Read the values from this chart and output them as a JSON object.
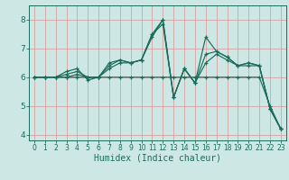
{
  "title": "",
  "xlabel": "Humidex (Indice chaleur)",
  "ylabel": "",
  "bg_color": "#cde8e4",
  "grid_color": "#b8d8d4",
  "line_color": "#1a6b5a",
  "xlim": [
    -0.5,
    23.5
  ],
  "ylim": [
    3.8,
    8.5
  ],
  "xticks": [
    0,
    1,
    2,
    3,
    4,
    5,
    6,
    7,
    8,
    9,
    10,
    11,
    12,
    13,
    14,
    15,
    16,
    17,
    18,
    19,
    20,
    21,
    22,
    23
  ],
  "yticks": [
    4,
    5,
    6,
    7,
    8
  ],
  "series": [
    {
      "x": [
        0,
        1,
        2,
        3,
        4,
        5,
        6,
        7,
        8,
        9,
        10,
        11,
        12,
        13,
        14,
        15,
        16,
        17,
        18,
        19,
        20,
        21,
        22,
        23
      ],
      "y": [
        6.0,
        6.0,
        6.0,
        6.1,
        6.2,
        6.0,
        6.0,
        6.3,
        6.5,
        6.5,
        6.6,
        7.5,
        7.85,
        5.3,
        6.3,
        5.8,
        6.5,
        6.8,
        6.6,
        6.4,
        6.4,
        6.4,
        4.9,
        4.2
      ]
    },
    {
      "x": [
        0,
        1,
        2,
        3,
        4,
        5,
        6,
        7,
        8,
        9,
        10,
        11,
        12,
        13,
        14,
        15,
        16,
        17,
        18,
        19,
        20,
        21,
        22,
        23
      ],
      "y": [
        6.0,
        6.0,
        6.0,
        6.0,
        6.1,
        6.0,
        6.0,
        6.4,
        6.6,
        6.5,
        6.6,
        7.4,
        8.0,
        5.3,
        6.3,
        5.8,
        7.4,
        6.9,
        6.7,
        6.4,
        6.5,
        6.4,
        4.9,
        4.2
      ]
    },
    {
      "x": [
        0,
        1,
        2,
        3,
        4,
        5,
        6,
        7,
        8,
        9,
        10,
        11,
        12,
        13,
        14,
        15,
        16,
        17,
        18,
        19,
        20,
        21,
        22,
        23
      ],
      "y": [
        6.0,
        6.0,
        6.0,
        6.2,
        6.3,
        5.9,
        6.0,
        6.5,
        6.6,
        6.5,
        6.6,
        7.5,
        8.0,
        5.3,
        6.3,
        5.8,
        6.8,
        6.9,
        6.7,
        6.4,
        6.5,
        6.4,
        4.9,
        4.2
      ]
    },
    {
      "x": [
        0,
        1,
        2,
        3,
        4,
        5,
        6,
        7,
        8,
        9,
        10,
        11,
        12,
        13,
        14,
        15,
        16,
        17,
        18,
        19,
        20,
        21,
        22,
        23
      ],
      "y": [
        6.0,
        6.0,
        6.0,
        6.0,
        6.0,
        6.0,
        6.0,
        6.0,
        6.0,
        6.0,
        6.0,
        6.0,
        6.0,
        6.0,
        6.0,
        6.0,
        6.0,
        6.0,
        6.0,
        6.0,
        6.0,
        6.0,
        5.0,
        4.2
      ]
    }
  ]
}
